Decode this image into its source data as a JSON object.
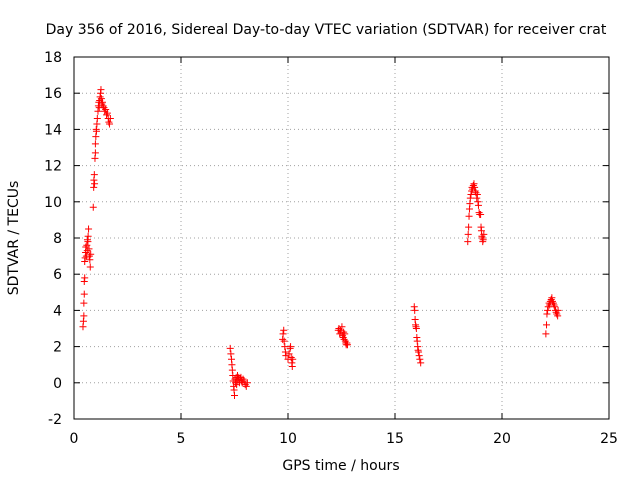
{
  "chart_data": {
    "type": "scatter",
    "title": "Day 356 of 2016, Sidereal Day-to-day VTEC variation (SDTVAR) for receiver crat",
    "xlabel": "GPS time / hours",
    "ylabel": "SDTVAR / TECUs",
    "xlim": [
      0,
      25
    ],
    "ylim": [
      -2,
      18
    ],
    "xticks": [
      0,
      5,
      10,
      15,
      20,
      25
    ],
    "yticks": [
      -2,
      0,
      2,
      4,
      6,
      8,
      10,
      12,
      14,
      16,
      18
    ],
    "grid": true,
    "marker": "+",
    "color": "#ff0000",
    "series": [
      {
        "name": "SDTVAR",
        "points": [
          [
            0.42,
            3.1
          ],
          [
            0.44,
            3.4
          ],
          [
            0.46,
            3.7
          ],
          [
            0.46,
            4.4
          ],
          [
            0.48,
            4.9
          ],
          [
            0.48,
            5.6
          ],
          [
            0.5,
            5.8
          ],
          [
            0.5,
            6.7
          ],
          [
            0.52,
            6.9
          ],
          [
            0.54,
            7.2
          ],
          [
            0.55,
            7.5
          ],
          [
            0.58,
            7.0
          ],
          [
            0.6,
            7.6
          ],
          [
            0.62,
            7.3
          ],
          [
            0.63,
            7.9
          ],
          [
            0.65,
            7.8
          ],
          [
            0.66,
            8.1
          ],
          [
            0.68,
            8.5
          ],
          [
            0.7,
            7.4
          ],
          [
            0.72,
            7.0
          ],
          [
            0.74,
            6.8
          ],
          [
            0.76,
            6.4
          ],
          [
            0.78,
            7.1
          ],
          [
            0.9,
            9.7
          ],
          [
            0.92,
            10.8
          ],
          [
            0.93,
            11.2
          ],
          [
            0.95,
            11.5
          ],
          [
            0.96,
            11.0
          ],
          [
            0.98,
            12.4
          ],
          [
            1.0,
            12.7
          ],
          [
            1.0,
            13.2
          ],
          [
            1.02,
            13.6
          ],
          [
            1.04,
            14.0
          ],
          [
            1.05,
            13.9
          ],
          [
            1.07,
            14.3
          ],
          [
            1.09,
            14.6
          ],
          [
            1.12,
            15.0
          ],
          [
            1.14,
            15.3
          ],
          [
            1.16,
            15.5
          ],
          [
            1.18,
            15.2
          ],
          [
            1.2,
            15.6
          ],
          [
            1.22,
            15.8
          ],
          [
            1.24,
            16.0
          ],
          [
            1.26,
            16.2
          ],
          [
            1.28,
            15.7
          ],
          [
            1.3,
            15.4
          ],
          [
            1.33,
            15.5
          ],
          [
            1.36,
            15.3
          ],
          [
            1.4,
            15.2
          ],
          [
            1.44,
            15.0
          ],
          [
            1.48,
            15.1
          ],
          [
            1.52,
            14.8
          ],
          [
            1.56,
            14.9
          ],
          [
            1.6,
            14.6
          ],
          [
            1.63,
            14.4
          ],
          [
            1.66,
            14.3
          ],
          [
            1.7,
            14.6
          ],
          [
            7.3,
            1.9
          ],
          [
            7.33,
            1.6
          ],
          [
            7.36,
            1.3
          ],
          [
            7.38,
            1.0
          ],
          [
            7.4,
            0.7
          ],
          [
            7.42,
            0.4
          ],
          [
            7.44,
            0.1
          ],
          [
            7.46,
            -0.2
          ],
          [
            7.48,
            -0.4
          ],
          [
            7.5,
            -0.7
          ],
          [
            7.52,
            0.2
          ],
          [
            7.55,
            0.0
          ],
          [
            7.58,
            0.3
          ],
          [
            7.6,
            -0.1
          ],
          [
            7.62,
            0.1
          ],
          [
            7.64,
            0.4
          ],
          [
            7.67,
            0.2
          ],
          [
            7.7,
            0.3
          ],
          [
            7.73,
            0.0
          ],
          [
            7.76,
            0.2
          ],
          [
            7.8,
            0.3
          ],
          [
            7.83,
            0.1
          ],
          [
            7.86,
            0.0
          ],
          [
            7.9,
            0.2
          ],
          [
            7.95,
            0.1
          ],
          [
            8.0,
            -0.1
          ],
          [
            8.05,
            -0.2
          ],
          [
            8.1,
            0.0
          ],
          [
            9.75,
            2.4
          ],
          [
            9.77,
            2.7
          ],
          [
            9.8,
            2.9
          ],
          [
            9.82,
            2.3
          ],
          [
            9.85,
            2.0
          ],
          [
            9.88,
            1.7
          ],
          [
            9.9,
            1.5
          ],
          [
            10.0,
            1.3
          ],
          [
            10.05,
            1.6
          ],
          [
            10.1,
            1.9
          ],
          [
            10.12,
            2.0
          ],
          [
            10.15,
            1.4
          ],
          [
            10.18,
            1.1
          ],
          [
            10.2,
            0.9
          ],
          [
            10.22,
            1.3
          ],
          [
            12.35,
            2.9
          ],
          [
            12.38,
            3.0
          ],
          [
            12.42,
            2.7
          ],
          [
            12.45,
            2.9
          ],
          [
            12.48,
            2.8
          ],
          [
            12.52,
            3.1
          ],
          [
            12.55,
            2.6
          ],
          [
            12.58,
            2.5
          ],
          [
            12.6,
            2.8
          ],
          [
            12.62,
            2.4
          ],
          [
            12.65,
            2.7
          ],
          [
            12.68,
            2.3
          ],
          [
            12.7,
            2.2
          ],
          [
            12.72,
            2.1
          ],
          [
            12.75,
            2.2
          ],
          [
            12.78,
            2.1
          ],
          [
            15.9,
            4.2
          ],
          [
            15.92,
            4.0
          ],
          [
            15.94,
            3.5
          ],
          [
            15.96,
            3.2
          ],
          [
            15.98,
            3.1
          ],
          [
            16.0,
            3.0
          ],
          [
            16.02,
            2.5
          ],
          [
            16.04,
            2.3
          ],
          [
            16.06,
            2.0
          ],
          [
            16.08,
            1.8
          ],
          [
            16.1,
            1.7
          ],
          [
            16.13,
            1.5
          ],
          [
            16.16,
            1.3
          ],
          [
            16.2,
            1.1
          ],
          [
            18.4,
            7.8
          ],
          [
            18.42,
            8.2
          ],
          [
            18.44,
            8.6
          ],
          [
            18.46,
            9.2
          ],
          [
            18.48,
            9.6
          ],
          [
            18.5,
            9.9
          ],
          [
            18.52,
            10.2
          ],
          [
            18.55,
            10.4
          ],
          [
            18.58,
            10.6
          ],
          [
            18.6,
            10.8
          ],
          [
            18.63,
            10.7
          ],
          [
            18.66,
            10.9
          ],
          [
            18.69,
            11.0
          ],
          [
            18.72,
            10.8
          ],
          [
            18.75,
            10.6
          ],
          [
            18.78,
            10.5
          ],
          [
            18.82,
            10.2
          ],
          [
            18.85,
            10.4
          ],
          [
            18.88,
            10.0
          ],
          [
            18.9,
            9.8
          ],
          [
            18.93,
            9.4
          ],
          [
            18.96,
            9.3
          ],
          [
            19.0,
            9.3
          ],
          [
            19.02,
            8.6
          ],
          [
            19.04,
            8.4
          ],
          [
            19.06,
            8.1
          ],
          [
            19.08,
            8.0
          ],
          [
            19.1,
            7.8
          ],
          [
            19.12,
            7.9
          ],
          [
            19.15,
            8.2
          ],
          [
            22.05,
            2.7
          ],
          [
            22.08,
            3.2
          ],
          [
            22.1,
            3.8
          ],
          [
            22.13,
            4.0
          ],
          [
            22.16,
            4.2
          ],
          [
            22.2,
            4.4
          ],
          [
            22.23,
            4.3
          ],
          [
            22.26,
            4.5
          ],
          [
            22.3,
            4.6
          ],
          [
            22.33,
            4.7
          ],
          [
            22.36,
            4.5
          ],
          [
            22.4,
            4.4
          ],
          [
            22.43,
            4.3
          ],
          [
            22.46,
            4.2
          ],
          [
            22.5,
            4.0
          ],
          [
            22.53,
            3.9
          ],
          [
            22.56,
            3.8
          ],
          [
            22.6,
            3.7
          ],
          [
            22.62,
            4.0
          ]
        ]
      }
    ]
  }
}
